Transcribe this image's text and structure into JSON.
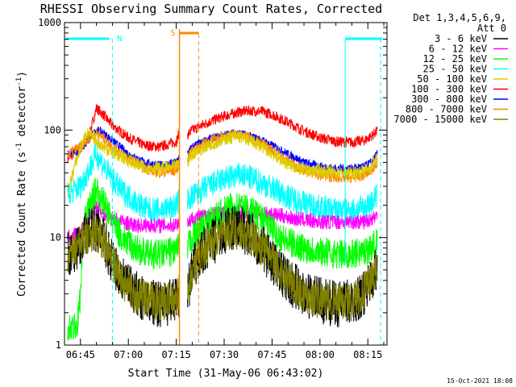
{
  "chart_data": {
    "type": "line",
    "title": "RHESSI Observing Summary Count Rates, Corrected",
    "xlabel": "Start Time (31-May-06 06:43:02)",
    "ylabel_main": "Corrected Count Rate (s",
    "ylabel_sup1": "-1",
    "ylabel_mid": " detector",
    "ylabel_sup2": "-1",
    "ylabel_end": ")",
    "y_scale": "log",
    "ylim": [
      1,
      1000
    ],
    "xlim_minutes": [
      40,
      141
    ],
    "x_ticks": [
      {
        "m": 45,
        "label": "06:45"
      },
      {
        "m": 60,
        "label": "07:00"
      },
      {
        "m": 75,
        "label": "07:15"
      },
      {
        "m": 90,
        "label": "07:30"
      },
      {
        "m": 105,
        "label": "07:45"
      },
      {
        "m": 120,
        "label": "08:00"
      },
      {
        "m": 135,
        "label": "08:15"
      }
    ],
    "y_ticks": [
      {
        "v": 1,
        "label": "1"
      },
      {
        "v": 10,
        "label": "10"
      },
      {
        "v": 100,
        "label": "100"
      },
      {
        "v": 1000,
        "label": "1000"
      }
    ],
    "legend": {
      "header1": "Det 1,3,4,5,6,9,",
      "header2": "Att 0",
      "entries": [
        {
          "label": "3 - 6 keV",
          "color": "#000000"
        },
        {
          "label": "6 - 12 keV",
          "color": "#ff00ff"
        },
        {
          "label": "12 - 25 keV",
          "color": "#00ff00"
        },
        {
          "label": "25 - 50 keV",
          "color": "#00ffff"
        },
        {
          "label": "50 - 100 keV",
          "color": "#ddcc00"
        },
        {
          "label": "100 - 300 keV",
          "color": "#ff0000"
        },
        {
          "label": "300 - 800 keV",
          "color": "#0000ff"
        },
        {
          "label": "800 - 7000 keV",
          "color": "#ff8800"
        },
        {
          "label": "7000 - 15000 keV",
          "color": "#808000"
        }
      ]
    },
    "gap_minutes": [
      76,
      78.5
    ],
    "series": [
      {
        "name": "100 - 300 keV",
        "color": "#ff0000",
        "noise": 0.05,
        "points": [
          [
            41,
            55
          ],
          [
            46,
            70
          ],
          [
            48,
            95
          ],
          [
            50,
            160
          ],
          [
            52,
            140
          ],
          [
            55,
            110
          ],
          [
            60,
            85
          ],
          [
            65,
            72
          ],
          [
            70,
            70
          ],
          [
            75,
            78
          ],
          [
            76,
            95
          ]
        ],
        "points2": [
          [
            78.5,
            90
          ],
          [
            80,
            100
          ],
          [
            85,
            118
          ],
          [
            90,
            135
          ],
          [
            95,
            148
          ],
          [
            98,
            152
          ],
          [
            102,
            148
          ],
          [
            105,
            140
          ],
          [
            110,
            118
          ],
          [
            115,
            98
          ],
          [
            120,
            85
          ],
          [
            125,
            78
          ],
          [
            130,
            77
          ],
          [
            134,
            80
          ],
          [
            136,
            88
          ],
          [
            138,
            98
          ]
        ]
      },
      {
        "name": "300 - 800 keV",
        "color": "#0000ff",
        "noise": 0.04,
        "points": [
          [
            41,
            60
          ],
          [
            45,
            65
          ],
          [
            48,
            85
          ],
          [
            50,
            100
          ],
          [
            52,
            95
          ],
          [
            55,
            80
          ],
          [
            60,
            60
          ],
          [
            65,
            50
          ],
          [
            70,
            47
          ],
          [
            75,
            50
          ],
          [
            76,
            58
          ]
        ],
        "points2": [
          [
            78.5,
            60
          ],
          [
            80,
            70
          ],
          [
            85,
            82
          ],
          [
            90,
            90
          ],
          [
            94,
            95
          ],
          [
            98,
            88
          ],
          [
            102,
            80
          ],
          [
            105,
            72
          ],
          [
            110,
            60
          ],
          [
            115,
            50
          ],
          [
            120,
            46
          ],
          [
            125,
            44
          ],
          [
            130,
            44
          ],
          [
            134,
            46
          ],
          [
            136,
            50
          ],
          [
            138,
            60
          ]
        ]
      },
      {
        "name": "800 - 7000 keV",
        "color": "#ff8800",
        "noise": 0.05,
        "points": [
          [
            41,
            60
          ],
          [
            45,
            70
          ],
          [
            48,
            85
          ],
          [
            50,
            95
          ],
          [
            52,
            85
          ],
          [
            55,
            70
          ],
          [
            60,
            55
          ],
          [
            65,
            44
          ],
          [
            70,
            40
          ],
          [
            75,
            42
          ],
          [
            76,
            50
          ]
        ],
        "points2": [
          [
            78.5,
            55
          ],
          [
            80,
            65
          ],
          [
            85,
            78
          ],
          [
            90,
            88
          ],
          [
            94,
            92
          ],
          [
            98,
            85
          ],
          [
            102,
            75
          ],
          [
            105,
            65
          ],
          [
            110,
            52
          ],
          [
            115,
            42
          ],
          [
            120,
            38
          ],
          [
            125,
            36
          ],
          [
            130,
            36
          ],
          [
            134,
            38
          ],
          [
            136,
            42
          ],
          [
            138,
            50
          ]
        ]
      },
      {
        "name": "50 - 100 keV",
        "color": "#ddcc00",
        "noise": 0.06,
        "points": [
          [
            41,
            25
          ],
          [
            43,
            45
          ],
          [
            46,
            80
          ],
          [
            47,
            95
          ],
          [
            49,
            85
          ],
          [
            52,
            70
          ],
          [
            55,
            62
          ],
          [
            60,
            52
          ],
          [
            65,
            45
          ],
          [
            70,
            44
          ],
          [
            75,
            46
          ],
          [
            76,
            50
          ]
        ],
        "points2": [
          [
            78.5,
            50
          ],
          [
            80,
            60
          ],
          [
            85,
            72
          ],
          [
            90,
            82
          ],
          [
            94,
            88
          ],
          [
            98,
            80
          ],
          [
            102,
            70
          ],
          [
            105,
            60
          ],
          [
            110,
            48
          ],
          [
            115,
            42
          ],
          [
            120,
            42
          ],
          [
            125,
            40
          ],
          [
            130,
            40
          ],
          [
            134,
            42
          ],
          [
            136,
            46
          ],
          [
            138,
            55
          ]
        ]
      },
      {
        "name": "25 - 50 keV",
        "color": "#00ffff",
        "noise": 0.12,
        "points": [
          [
            41,
            25
          ],
          [
            45,
            30
          ],
          [
            48,
            45
          ],
          [
            50,
            60
          ],
          [
            52,
            48
          ],
          [
            55,
            35
          ],
          [
            58,
            27
          ],
          [
            62,
            22
          ],
          [
            66,
            18
          ],
          [
            70,
            18
          ],
          [
            74,
            19
          ],
          [
            76,
            22
          ]
        ],
        "points2": [
          [
            78.5,
            22
          ],
          [
            80,
            24
          ],
          [
            85,
            30
          ],
          [
            90,
            35
          ],
          [
            95,
            38
          ],
          [
            98,
            36
          ],
          [
            102,
            32
          ],
          [
            105,
            29
          ],
          [
            110,
            24
          ],
          [
            115,
            21
          ],
          [
            120,
            19
          ],
          [
            125,
            18
          ],
          [
            130,
            18
          ],
          [
            134,
            19
          ],
          [
            136,
            21
          ],
          [
            138,
            25
          ]
        ]
      },
      {
        "name": "6 - 12 keV",
        "color": "#ff00ff",
        "noise": 0.07,
        "points": [
          [
            41,
            10
          ],
          [
            45,
            11
          ],
          [
            48,
            16
          ],
          [
            50,
            20
          ],
          [
            52,
            17
          ],
          [
            55,
            15
          ],
          [
            58,
            14
          ],
          [
            62,
            13
          ],
          [
            66,
            13
          ],
          [
            70,
            13
          ],
          [
            74,
            13
          ],
          [
            76,
            14
          ]
        ],
        "points2": [
          [
            78.5,
            14
          ],
          [
            80,
            15
          ],
          [
            84,
            16
          ],
          [
            88,
            17
          ],
          [
            92,
            17.5
          ],
          [
            96,
            17.5
          ],
          [
            100,
            17
          ],
          [
            104,
            16.5
          ],
          [
            108,
            16
          ],
          [
            112,
            15
          ],
          [
            116,
            14.5
          ],
          [
            120,
            14
          ],
          [
            125,
            14
          ],
          [
            130,
            14
          ],
          [
            134,
            14
          ],
          [
            136,
            15
          ],
          [
            138,
            16
          ]
        ]
      },
      {
        "name": "12 - 25 keV",
        "color": "#00ff00",
        "noise": 0.14,
        "points": [
          [
            41,
            1.5
          ],
          [
            44,
            1.5
          ],
          [
            45,
            3
          ],
          [
            46,
            13
          ],
          [
            48,
            20
          ],
          [
            50,
            28
          ],
          [
            52,
            22
          ],
          [
            55,
            14
          ],
          [
            58,
            10
          ],
          [
            62,
            8
          ],
          [
            66,
            7
          ],
          [
            70,
            7
          ],
          [
            74,
            7.5
          ],
          [
            76,
            8
          ]
        ],
        "points2": [
          [
            78.5,
            8
          ],
          [
            80,
            10
          ],
          [
            84,
            13
          ],
          [
            88,
            16
          ],
          [
            92,
            19
          ],
          [
            95,
            20
          ],
          [
            98,
            18
          ],
          [
            102,
            15
          ],
          [
            105,
            12
          ],
          [
            110,
            9
          ],
          [
            115,
            8
          ],
          [
            120,
            7.5
          ],
          [
            125,
            7
          ],
          [
            130,
            7
          ],
          [
            134,
            7.5
          ],
          [
            136,
            8
          ],
          [
            138,
            9
          ]
        ]
      },
      {
        "name": "3 - 6 keV",
        "color": "#000000",
        "noise": 0.22,
        "points": [
          [
            41,
            7
          ],
          [
            44,
            8
          ],
          [
            46,
            10
          ],
          [
            48,
            12
          ],
          [
            50,
            12
          ],
          [
            52,
            10
          ],
          [
            55,
            6
          ],
          [
            58,
            4
          ],
          [
            62,
            3
          ],
          [
            66,
            2.6
          ],
          [
            70,
            2.4
          ],
          [
            74,
            2.5
          ],
          [
            76,
            3
          ]
        ],
        "points2": [
          [
            78.5,
            3
          ],
          [
            80,
            5
          ],
          [
            84,
            8
          ],
          [
            88,
            10
          ],
          [
            92,
            12
          ],
          [
            95,
            12
          ],
          [
            98,
            11
          ],
          [
            102,
            8
          ],
          [
            105,
            6
          ],
          [
            110,
            4
          ],
          [
            115,
            3
          ],
          [
            120,
            2.6
          ],
          [
            125,
            2.4
          ],
          [
            130,
            2.5
          ],
          [
            134,
            3
          ],
          [
            136,
            4
          ],
          [
            138,
            5
          ]
        ]
      },
      {
        "name": "7000 - 15000 keV",
        "color": "#808000",
        "noise": 0.18,
        "points": [
          [
            41,
            7
          ],
          [
            44,
            8
          ],
          [
            46,
            10
          ],
          [
            48,
            11
          ],
          [
            50,
            11
          ],
          [
            52,
            9.5
          ],
          [
            55,
            6
          ],
          [
            58,
            4
          ],
          [
            62,
            3
          ],
          [
            66,
            2.6
          ],
          [
            70,
            2.5
          ],
          [
            74,
            2.6
          ],
          [
            76,
            3.2
          ]
        ],
        "points2": [
          [
            78.5,
            3.2
          ],
          [
            80,
            5
          ],
          [
            84,
            8
          ],
          [
            88,
            10.5
          ],
          [
            92,
            11.5
          ],
          [
            95,
            11.5
          ],
          [
            98,
            10.5
          ],
          [
            102,
            8
          ],
          [
            105,
            6
          ],
          [
            110,
            4
          ],
          [
            115,
            3
          ],
          [
            120,
            2.6
          ],
          [
            125,
            2.5
          ],
          [
            130,
            2.6
          ],
          [
            134,
            3.2
          ],
          [
            136,
            4
          ],
          [
            138,
            5.5
          ]
        ]
      }
    ],
    "night_markers": [
      {
        "label": "N",
        "minute": 55,
        "color": "#00ffff"
      },
      {
        "label": "",
        "minute": 139,
        "color": "#00ffff"
      }
    ],
    "saa_markers": [
      {
        "label": "S",
        "minute": 76,
        "color": "#ff8800"
      },
      {
        "label": "",
        "minute": 82,
        "color": "#ff8800"
      }
    ],
    "date_stamp": "15-Oct-2021 18:08"
  }
}
